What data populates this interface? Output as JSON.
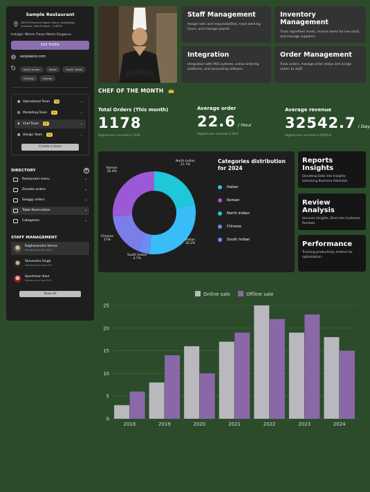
{
  "sidebar": {
    "restaurant_name": "Sample Restaurant",
    "address": "D65/56 Ravindra Nagar Colony, Aaliyabagh, Lucknow, Uttar-Pradesh - 226010",
    "tagline": "Indulge: Where Flavor Meets Elegance.",
    "edit_label": "Edit Profile",
    "website": "sonplasico.com",
    "cuisines": [
      "North Indian",
      "Italian",
      "South Indian",
      "Chinese",
      "Korean"
    ],
    "teams": [
      {
        "label": "Operational Team",
        "count": "10"
      },
      {
        "label": "Marketing Team",
        "count": "12"
      },
      {
        "label": "Chef Team",
        "count": "25"
      },
      {
        "label": "Design Team",
        "count": "10"
      }
    ],
    "create_team_label": "Create a team",
    "directory_title": "DIRECTORY",
    "directory_items": [
      "Restaurant menu",
      "Zomato orders",
      "Swiggy orders",
      "Table Reservation",
      "Categories"
    ],
    "staff_title": "STAFF MANAGEMENT",
    "staff": [
      {
        "name": "Raghavendra Verma",
        "since": "Member since May 2023"
      },
      {
        "name": "Shivendra Singh",
        "since": "Member since Aug 2023"
      },
      {
        "name": "Ayushman Kaur",
        "since": "Member since Nov 2023"
      }
    ],
    "show_all_label": "Show All"
  },
  "chef_of_month": "CHEF OF THE MONTH",
  "features": [
    {
      "title": "Staff Management",
      "desc": "Assign roles and responsibilities, track working hours, and manage payroll."
    },
    {
      "title": "Inventory Management",
      "desc": "Track ingredient levels, receive alerts for low stock, and manage suppliers."
    },
    {
      "title": "Integration",
      "desc": "Integration with POS systems, online ordering platforms, and accounting software"
    },
    {
      "title": "Order Management",
      "desc": "Track orders, manage order status and assign orders to staff."
    }
  ],
  "stats": [
    {
      "label": "Total Orders (This month)",
      "value": "1178",
      "unit": "",
      "sub": "Highest ever recorded is 1246"
    },
    {
      "label": "Average order",
      "value": "22.6",
      "unit": "/ Hour",
      "sub": "Highest ever recorded is 36.6"
    },
    {
      "label": "Average revenue",
      "value": "32542.7",
      "unit": "/ Day",
      "sub": "Highest ever recorded is 46565.8"
    }
  ],
  "categories": {
    "title": "Categories distribution for 2024",
    "slices": [
      {
        "name": "North Indian",
        "pct": 21.7,
        "label": "21.7%",
        "color": "#1fc8d8"
      },
      {
        "name": "Italian",
        "pct": 30.2,
        "label": "30.2%",
        "color": "#38bdf8"
      },
      {
        "name": "South Indian",
        "pct": 4.7,
        "label": "4.7%",
        "color": "#6b8cf0"
      },
      {
        "name": "Chinese",
        "pct": 17,
        "label": "17%",
        "color": "#7b7ee8"
      },
      {
        "name": "Korean",
        "pct": 26.4,
        "label": "26.4%",
        "color": "#9b59d6"
      }
    ],
    "legend": [
      "Italian",
      "Korean",
      "North Indian",
      "Chinese",
      "South Indian"
    ]
  },
  "insights": [
    {
      "title": "Reports Insights",
      "desc": "Elevating Data into Insights: Unlocking Business Potential."
    },
    {
      "title": "Review Analysis",
      "desc": "Uncover Insights, Dive into Customer Reviews"
    },
    {
      "title": "Performance",
      "desc": "Tracking productivity metrics for optimization."
    }
  ],
  "chart_data": {
    "type": "bar",
    "categories": [
      "2018",
      "2019",
      "2020",
      "2021",
      "2022",
      "2023",
      "2024"
    ],
    "series": [
      {
        "name": "Online sale",
        "values": [
          3,
          8,
          16,
          17,
          25,
          19,
          18
        ],
        "color": "#b9b9bd"
      },
      {
        "name": "Offline sale",
        "values": [
          6,
          14,
          10,
          19,
          22,
          23,
          15
        ],
        "color": "#8a68a8"
      }
    ],
    "ylim": [
      0,
      25
    ],
    "yticks": [
      0,
      5,
      10,
      15,
      20,
      25
    ],
    "grid": true,
    "legend": "top"
  }
}
